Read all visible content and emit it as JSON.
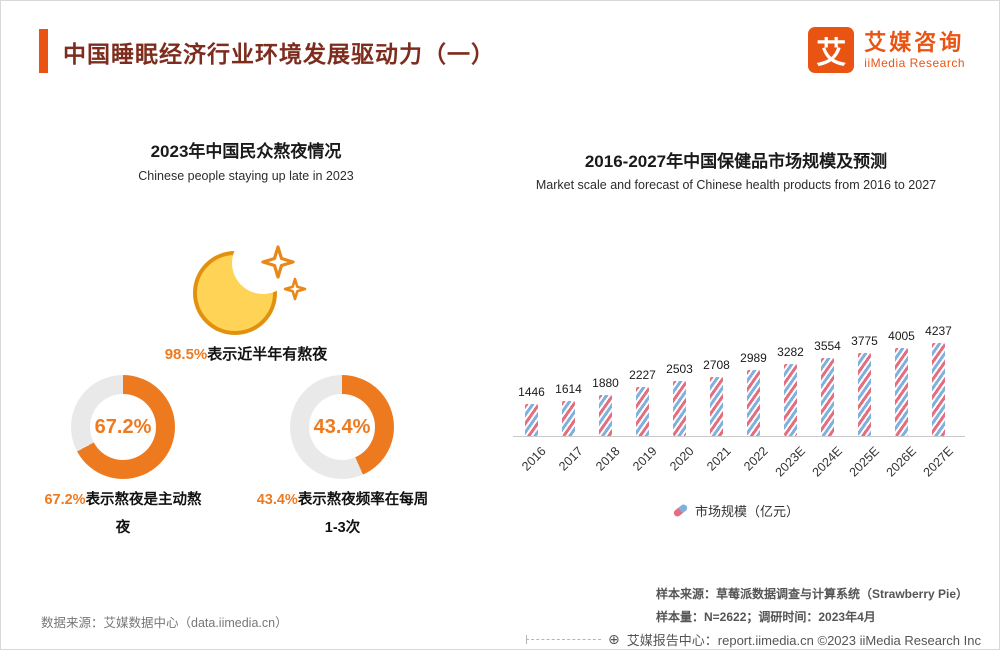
{
  "colors": {
    "accent": "#e95413",
    "title": "#7e2c1e",
    "donut_orange": "#ee7a20",
    "orange_text": "#ee7a20",
    "bar_pink": "#e46e80",
    "bar_blue": "#7fb1de",
    "gray_ring": "#e9e9e9"
  },
  "header": {
    "title": "中国睡眠经济行业环境发展驱动力（一）",
    "logo_glyph": "艾",
    "brand_cn": "艾媒咨询",
    "brand_en": "iiMedia Research"
  },
  "left": {
    "title": "2023年中国民众熬夜情况",
    "subtitle": "Chinese people staying up late in 2023",
    "stat_value": "98.5%",
    "stat_text": "表示近半年有熬夜",
    "donuts": [
      {
        "percent": 67.2,
        "value_label": "67.2%",
        "caption_value": "67.2%",
        "caption_text": "表示熬夜是主动熬夜"
      },
      {
        "percent": 43.4,
        "value_label": "43.4%",
        "caption_value": "43.4%",
        "caption_text": "表示熬夜频率在每周1-3次"
      }
    ]
  },
  "right": {
    "title": "2016-2027年中国保健品市场规模及预测",
    "subtitle": "Market scale and forecast of Chinese health products from 2016 to 2027",
    "legend": "市场规模（亿元）"
  },
  "chart_data": [
    {
      "type": "bar",
      "title": "2016-2027年中国保健品市场规模及预测",
      "categories": [
        "2016",
        "2017",
        "2018",
        "2019",
        "2020",
        "2021",
        "2022",
        "2023E",
        "2024E",
        "2025E",
        "2026E",
        "2027E"
      ],
      "values": [
        1446,
        1614,
        1880,
        2227,
        2503,
        2708,
        2989,
        3282,
        3554,
        3775,
        4005,
        4237
      ],
      "legend": [
        "市场规模（亿元）"
      ],
      "xlabel": "",
      "ylabel": "市场规模（亿元）",
      "ylim": [
        0,
        4500
      ],
      "grid": false,
      "legend_position": "bottom"
    },
    {
      "type": "pie",
      "values": [
        67.2,
        32.8
      ],
      "labels": [
        "67.2%表示熬夜是主动熬夜",
        "remainder"
      ]
    },
    {
      "type": "pie",
      "values": [
        43.4,
        56.6
      ],
      "labels": [
        "43.4%表示熬夜频率在每周1-3次",
        "remainder"
      ]
    }
  ],
  "footnotes": {
    "sample_source": "样本来源：草莓派数据调查与计算系统（Strawberry Pie）",
    "sample_info": "样本量：N=2622；调研时间：2023年4月",
    "data_source": "数据来源：艾媒数据中心（data.iimedia.cn）"
  },
  "footer": {
    "icon": "⊕",
    "text": "艾媒报告中心：report.iimedia.cn  ©2023  iiMedia Research Inc"
  }
}
